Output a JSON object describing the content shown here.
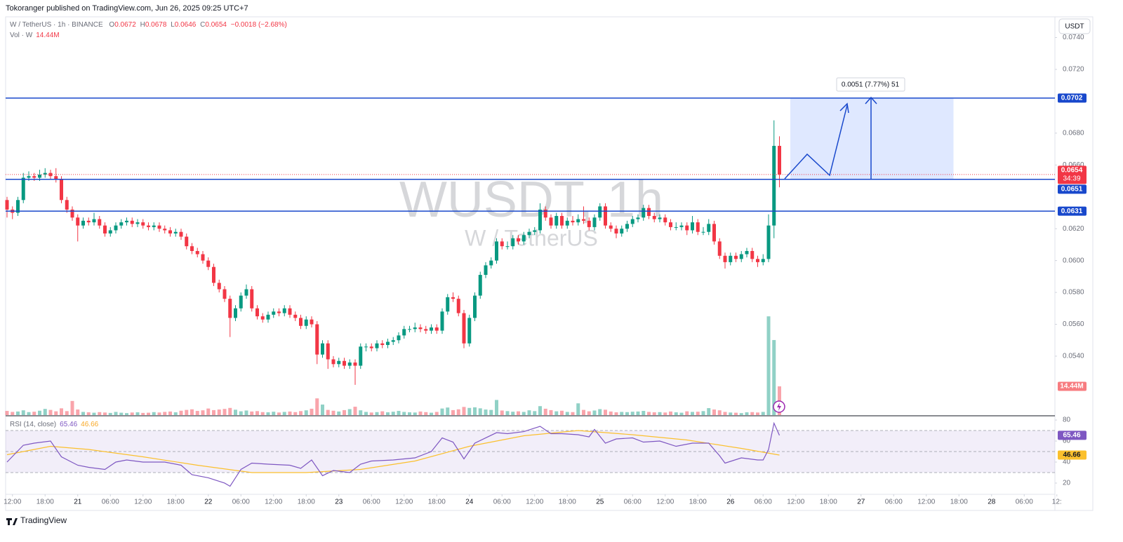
{
  "chart_data": {
    "type": "candlestick",
    "publisher": "Tokoranger published on TradingView.com, Jun 26, 2025 09:25 UTC+7",
    "legend": {
      "symbol": "W / TetherUS · 1h · BINANCE",
      "ohlc_letters": [
        "O",
        "H",
        "L",
        "C"
      ],
      "change": "−0.0018 (−2.68%)",
      "volume": "Vol · W"
    },
    "watermark": "WUSDT, 1h",
    "watermark_sub": "W / TetherUS",
    "currency": "USDT",
    "countdown": "34:39",
    "footer": "TradingView",
    "colors": {
      "up": "#089981",
      "down": "#f23645",
      "line": "#1848cc",
      "rsi": "#7e57c2",
      "rsi_ma": "#fbc02d"
    },
    "grid": false,
    "ylim": [
      0.0503,
      0.0753
    ],
    "yticks": [
      {
        "value": 0.074,
        "label": "0.0740"
      },
      {
        "value": 0.072,
        "label": "0.0720"
      },
      {
        "value": 0.068,
        "label": "0.0680"
      },
      {
        "value": 0.066,
        "label": "0.0660"
      },
      {
        "value": 0.062,
        "label": "0.0620"
      },
      {
        "value": 0.06,
        "label": "0.0600"
      },
      {
        "value": 0.058,
        "label": "0.0580"
      },
      {
        "value": 0.056,
        "label": "0.0560"
      },
      {
        "value": 0.054,
        "label": "0.0540"
      }
    ],
    "xticks": [
      {
        "value": 1,
        "label": "12:00"
      },
      {
        "value": 7,
        "label": "18:00"
      },
      {
        "value": 13,
        "label": "21"
      },
      {
        "value": 19,
        "label": "06:00"
      },
      {
        "value": 25,
        "label": "12:00"
      },
      {
        "value": 31,
        "label": "18:00"
      },
      {
        "value": 37,
        "label": "22"
      },
      {
        "value": 43,
        "label": "06:00"
      },
      {
        "value": 49,
        "label": "12:00"
      },
      {
        "value": 55,
        "label": "18:00"
      },
      {
        "value": 61,
        "label": "23"
      },
      {
        "value": 67,
        "label": "06:00"
      },
      {
        "value": 73,
        "label": "12:00"
      },
      {
        "value": 79,
        "label": "18:00"
      },
      {
        "value": 85,
        "label": "24"
      },
      {
        "value": 91,
        "label": "06:00"
      },
      {
        "value": 97,
        "label": "12:00"
      },
      {
        "value": 103,
        "label": "18:00"
      },
      {
        "value": 109,
        "label": "25"
      },
      {
        "value": 115,
        "label": "06:00"
      },
      {
        "value": 121,
        "label": "12:00"
      },
      {
        "value": 127,
        "label": "18:00"
      },
      {
        "value": 133,
        "label": "26"
      },
      {
        "value": 139,
        "label": "06:00"
      },
      {
        "value": 145,
        "label": "12:00"
      },
      {
        "value": 151,
        "label": "18:00"
      },
      {
        "value": 157,
        "label": "27"
      },
      {
        "value": 163,
        "label": "06:00"
      },
      {
        "value": 169,
        "label": "12:00"
      },
      {
        "value": 175,
        "label": "18:00"
      },
      {
        "value": 181,
        "label": "28"
      },
      {
        "value": 187,
        "label": "06:00"
      },
      {
        "value": 193,
        "label": "12:"
      }
    ],
    "candles": [
      [
        0.0638,
        0.064,
        0.0627,
        0.0632
      ],
      [
        0.0632,
        0.0634,
        0.0626,
        0.063
      ],
      [
        0.063,
        0.064,
        0.0628,
        0.0638
      ],
      [
        0.0638,
        0.0655,
        0.0636,
        0.0652
      ],
      [
        0.0652,
        0.0656,
        0.065,
        0.0653
      ],
      [
        0.0653,
        0.0655,
        0.065,
        0.0652
      ],
      [
        0.0652,
        0.0657,
        0.065,
        0.0654
      ],
      [
        0.0654,
        0.0658,
        0.0652,
        0.0655
      ],
      [
        0.0655,
        0.0657,
        0.0651,
        0.0653
      ],
      [
        0.0653,
        0.0658,
        0.0649,
        0.0651
      ],
      [
        0.0651,
        0.0653,
        0.0636,
        0.0638
      ],
      [
        0.0638,
        0.064,
        0.063,
        0.0632
      ],
      [
        0.0632,
        0.0634,
        0.0625,
        0.0627
      ],
      [
        0.0627,
        0.0629,
        0.0612,
        0.0622
      ],
      [
        0.0622,
        0.0627,
        0.062,
        0.0625
      ],
      [
        0.0625,
        0.0627,
        0.0622,
        0.0624
      ],
      [
        0.0624,
        0.063,
        0.0622,
        0.0626
      ],
      [
        0.0626,
        0.0628,
        0.062,
        0.0622
      ],
      [
        0.0622,
        0.0624,
        0.0615,
        0.0617
      ],
      [
        0.0617,
        0.0621,
        0.0615,
        0.0619
      ],
      [
        0.0619,
        0.0624,
        0.0617,
        0.0622
      ],
      [
        0.0622,
        0.0626,
        0.062,
        0.0624
      ],
      [
        0.0624,
        0.0627,
        0.0622,
        0.0625
      ],
      [
        0.0625,
        0.0627,
        0.0621,
        0.0623
      ],
      [
        0.0623,
        0.0626,
        0.0621,
        0.0624
      ],
      [
        0.0624,
        0.0626,
        0.062,
        0.0622
      ],
      [
        0.0622,
        0.0624,
        0.0619,
        0.0621
      ],
      [
        0.0621,
        0.0624,
        0.0619,
        0.0622
      ],
      [
        0.0622,
        0.0624,
        0.0618,
        0.062
      ],
      [
        0.062,
        0.0622,
        0.0617,
        0.0619
      ],
      [
        0.0619,
        0.0621,
        0.0615,
        0.0617
      ],
      [
        0.0617,
        0.062,
        0.0615,
        0.0618
      ],
      [
        0.0618,
        0.062,
        0.0613,
        0.0615
      ],
      [
        0.0615,
        0.0617,
        0.0607,
        0.0609
      ],
      [
        0.0609,
        0.0611,
        0.0604,
        0.0606
      ],
      [
        0.0606,
        0.0608,
        0.0602,
        0.0604
      ],
      [
        0.0604,
        0.0606,
        0.0598,
        0.06
      ],
      [
        0.06,
        0.0602,
        0.0594,
        0.0596
      ],
      [
        0.0596,
        0.0598,
        0.0584,
        0.0586
      ],
      [
        0.0586,
        0.0588,
        0.058,
        0.0582
      ],
      [
        0.0582,
        0.0584,
        0.0574,
        0.0576
      ],
      [
        0.0576,
        0.0578,
        0.0552,
        0.0564
      ],
      [
        0.0564,
        0.0572,
        0.0562,
        0.057
      ],
      [
        0.057,
        0.058,
        0.0568,
        0.0578
      ],
      [
        0.0578,
        0.0585,
        0.0576,
        0.0582
      ],
      [
        0.0582,
        0.0584,
        0.0568,
        0.057
      ],
      [
        0.057,
        0.0572,
        0.0563,
        0.0565
      ],
      [
        0.0565,
        0.0567,
        0.0561,
        0.0563
      ],
      [
        0.0563,
        0.0568,
        0.0561,
        0.0566
      ],
      [
        0.0566,
        0.057,
        0.0564,
        0.0568
      ],
      [
        0.0568,
        0.057,
        0.0565,
        0.0567
      ],
      [
        0.0567,
        0.0572,
        0.0565,
        0.057
      ],
      [
        0.057,
        0.0572,
        0.0564,
        0.0566
      ],
      [
        0.0566,
        0.0568,
        0.0562,
        0.0564
      ],
      [
        0.0564,
        0.0566,
        0.0557,
        0.0559
      ],
      [
        0.0559,
        0.0565,
        0.0557,
        0.0563
      ],
      [
        0.0563,
        0.0565,
        0.0558,
        0.056
      ],
      [
        0.056,
        0.0562,
        0.0535,
        0.0541
      ],
      [
        0.0541,
        0.055,
        0.0539,
        0.0548
      ],
      [
        0.0548,
        0.055,
        0.0532,
        0.0538
      ],
      [
        0.0538,
        0.054,
        0.0533,
        0.0535
      ],
      [
        0.0535,
        0.0539,
        0.0533,
        0.0537
      ],
      [
        0.0537,
        0.0539,
        0.0532,
        0.0534
      ],
      [
        0.0534,
        0.0538,
        0.0532,
        0.0536
      ],
      [
        0.0536,
        0.0538,
        0.0522,
        0.0534
      ],
      [
        0.0534,
        0.0548,
        0.0532,
        0.0546
      ],
      [
        0.0546,
        0.0548,
        0.0543,
        0.0546
      ],
      [
        0.0546,
        0.0548,
        0.0543,
        0.0545
      ],
      [
        0.0545,
        0.055,
        0.0543,
        0.0548
      ],
      [
        0.0548,
        0.055,
        0.0545,
        0.0547
      ],
      [
        0.0547,
        0.0551,
        0.0545,
        0.0549
      ],
      [
        0.0549,
        0.0552,
        0.0547,
        0.055
      ],
      [
        0.055,
        0.0555,
        0.0548,
        0.0553
      ],
      [
        0.0553,
        0.0559,
        0.0551,
        0.0557
      ],
      [
        0.0557,
        0.0559,
        0.0555,
        0.0557
      ],
      [
        0.0557,
        0.0561,
        0.0555,
        0.0558
      ],
      [
        0.0558,
        0.056,
        0.0555,
        0.0557
      ],
      [
        0.0557,
        0.0559,
        0.0554,
        0.0556
      ],
      [
        0.0556,
        0.056,
        0.0554,
        0.0558
      ],
      [
        0.0558,
        0.056,
        0.0554,
        0.0556
      ],
      [
        0.0556,
        0.057,
        0.0554,
        0.0568
      ],
      [
        0.0568,
        0.0579,
        0.0566,
        0.0577
      ],
      [
        0.0577,
        0.058,
        0.0574,
        0.0576
      ],
      [
        0.0576,
        0.0578,
        0.0565,
        0.0567
      ],
      [
        0.0567,
        0.0569,
        0.0545,
        0.0548
      ],
      [
        0.0548,
        0.0566,
        0.0546,
        0.0564
      ],
      [
        0.0564,
        0.058,
        0.0562,
        0.0578
      ],
      [
        0.0578,
        0.0593,
        0.0576,
        0.0591
      ],
      [
        0.0591,
        0.0599,
        0.0589,
        0.0597
      ],
      [
        0.0597,
        0.0602,
        0.0595,
        0.06
      ],
      [
        0.06,
        0.0614,
        0.0598,
        0.0612
      ],
      [
        0.0612,
        0.0614,
        0.0607,
        0.0609
      ],
      [
        0.0609,
        0.0612,
        0.0607,
        0.0609
      ],
      [
        0.0609,
        0.0616,
        0.0607,
        0.0614
      ],
      [
        0.0614,
        0.0616,
        0.061,
        0.0612
      ],
      [
        0.0612,
        0.0618,
        0.061,
        0.0616
      ],
      [
        0.0616,
        0.062,
        0.0614,
        0.0618
      ],
      [
        0.0618,
        0.0621,
        0.0616,
        0.0619
      ],
      [
        0.0619,
        0.0636,
        0.0617,
        0.0632
      ],
      [
        0.0632,
        0.0634,
        0.0625,
        0.0627
      ],
      [
        0.0627,
        0.0629,
        0.062,
        0.0622
      ],
      [
        0.0622,
        0.063,
        0.062,
        0.0628
      ],
      [
        0.0628,
        0.063,
        0.062,
        0.0622
      ],
      [
        0.0622,
        0.0627,
        0.062,
        0.0625
      ],
      [
        0.0625,
        0.0628,
        0.0622,
        0.0624
      ],
      [
        0.0624,
        0.0629,
        0.0622,
        0.0626
      ],
      [
        0.0626,
        0.0634,
        0.0623,
        0.0625
      ],
      [
        0.0625,
        0.0627,
        0.0619,
        0.0621
      ],
      [
        0.0621,
        0.0629,
        0.0619,
        0.0627
      ],
      [
        0.0627,
        0.0636,
        0.0625,
        0.0634
      ],
      [
        0.0634,
        0.0636,
        0.062,
        0.0622
      ],
      [
        0.0622,
        0.0624,
        0.0618,
        0.062
      ],
      [
        0.062,
        0.0622,
        0.0614,
        0.0617
      ],
      [
        0.0617,
        0.0622,
        0.0615,
        0.062
      ],
      [
        0.062,
        0.0625,
        0.0618,
        0.0623
      ],
      [
        0.0623,
        0.0628,
        0.0621,
        0.0626
      ],
      [
        0.0626,
        0.0629,
        0.0624,
        0.0627
      ],
      [
        0.0627,
        0.0635,
        0.0625,
        0.0633
      ],
      [
        0.0633,
        0.0635,
        0.0626,
        0.0628
      ],
      [
        0.0628,
        0.063,
        0.0624,
        0.0626
      ],
      [
        0.0626,
        0.0629,
        0.0624,
        0.0627
      ],
      [
        0.0627,
        0.0629,
        0.0622,
        0.0624
      ],
      [
        0.0624,
        0.0626,
        0.0619,
        0.0621
      ],
      [
        0.0621,
        0.0624,
        0.0619,
        0.0621
      ],
      [
        0.0621,
        0.0624,
        0.0619,
        0.0622
      ],
      [
        0.0622,
        0.0624,
        0.0616,
        0.0619
      ],
      [
        0.0619,
        0.0628,
        0.0617,
        0.0624
      ],
      [
        0.0624,
        0.0626,
        0.0616,
        0.0618
      ],
      [
        0.0618,
        0.0621,
        0.0616,
        0.0618
      ],
      [
        0.0618,
        0.0626,
        0.0616,
        0.0623
      ],
      [
        0.0623,
        0.0625,
        0.061,
        0.0612
      ],
      [
        0.0612,
        0.0614,
        0.0601,
        0.0603
      ],
      [
        0.0603,
        0.0605,
        0.0595,
        0.0599
      ],
      [
        0.0599,
        0.0605,
        0.0597,
        0.0603
      ],
      [
        0.0603,
        0.0605,
        0.0599,
        0.0601
      ],
      [
        0.0601,
        0.0606,
        0.0599,
        0.0604
      ],
      [
        0.0604,
        0.0608,
        0.0602,
        0.0606
      ],
      [
        0.0606,
        0.0608,
        0.0599,
        0.0601
      ],
      [
        0.0601,
        0.0603,
        0.0596,
        0.0599
      ],
      [
        0.0599,
        0.0604,
        0.0597,
        0.0601
      ],
      [
        0.0601,
        0.0629,
        0.0599,
        0.0622
      ],
      [
        0.0622,
        0.0688,
        0.0614,
        0.0672
      ],
      [
        0.0672,
        0.0678,
        0.0646,
        0.0654
      ]
    ],
    "volume": [
      2.1,
      1.6,
      1.8,
      2.4,
      1.5,
      1.7,
      2.2,
      3.1,
      2.6,
      1.9,
      3.4,
      2.0,
      7.1,
      2.8,
      1.6,
      1.4,
      1.2,
      1.5,
      1.3,
      1.1,
      1.6,
      1.2,
      1.0,
      1.3,
      1.4,
      1.1,
      1.2,
      1.5,
      1.3,
      1.6,
      1.8,
      1.4,
      2.2,
      2.6,
      2.9,
      2.1,
      2.4,
      3.3,
      2.5,
      2.8,
      3.1,
      3.6,
      2.7,
      1.9,
      2.3,
      1.8,
      2.0,
      1.5,
      1.4,
      1.7,
      1.3,
      1.6,
      1.8,
      1.5,
      2.0,
      2.4,
      3.2,
      8.4,
      5.3,
      2.6,
      2.2,
      1.8,
      2.5,
      3.0,
      4.2,
      2.4,
      1.6,
      1.3,
      1.5,
      1.9,
      1.4,
      1.7,
      2.1,
      1.6,
      1.4,
      1.3,
      1.8,
      1.5,
      1.2,
      1.6,
      3.3,
      3.8,
      2.5,
      2.9,
      4.1,
      3.6,
      3.9,
      3.4,
      2.8,
      2.6,
      7.6,
      2.3,
      2.0,
      1.7,
      1.9,
      1.6,
      2.4,
      2.0,
      4.5,
      3.2,
      2.5,
      1.9,
      2.2,
      1.6,
      1.5,
      5.9,
      2.6,
      1.9,
      2.3,
      3.0,
      2.7,
      1.8,
      1.4,
      1.6,
      1.5,
      1.7,
      1.8,
      2.1,
      1.6,
      1.4,
      1.5,
      1.3,
      1.8,
      1.4,
      1.2,
      1.9,
      1.6,
      1.7,
      2.0,
      3.5,
      2.8,
      2.4,
      1.6,
      1.3,
      1.2,
      1.0,
      1.4,
      1.5,
      1.3,
      1.6,
      49.6,
      37.7,
      14.44
    ],
    "volume_label": "14.44M",
    "hlines": [
      0.0702,
      0.0651,
      0.0631
    ],
    "projection_label": "0.0051 (7.77%) 51",
    "rsi_title": "RSI (14, close)",
    "rsi_ylim": [
      9.3,
      80.7
    ],
    "rsi_yticks": [
      80,
      60,
      40,
      20
    ],
    "rsi_levels": [
      70,
      50,
      30
    ],
    "rsi": {
      "x": [
        0,
        3,
        5,
        8,
        10,
        13,
        15,
        18,
        20,
        22,
        25,
        29,
        32,
        34,
        37,
        40,
        41,
        43,
        45,
        48,
        52,
        54,
        56,
        58,
        60,
        63,
        65,
        67,
        71,
        75,
        78,
        80,
        82,
        84,
        86,
        90,
        92,
        95,
        98,
        100,
        102,
        105,
        107,
        108,
        110,
        112,
        115,
        117,
        120,
        123,
        126,
        129,
        131,
        132,
        135,
        138,
        139,
        140,
        141,
        142
      ],
      "values": [
        40,
        56,
        58,
        60,
        45,
        37,
        35,
        33,
        40,
        42,
        40,
        40,
        37,
        28,
        25,
        20,
        17,
        33,
        39,
        38,
        37,
        34,
        42,
        27,
        32,
        30,
        38,
        41,
        42,
        44,
        50,
        63,
        59,
        43,
        58,
        68,
        67,
        69,
        74,
        67,
        67,
        66,
        64,
        71,
        58,
        62,
        63,
        59,
        60,
        55,
        58,
        58,
        46,
        39,
        44,
        42,
        42,
        52,
        77,
        65.46
      ]
    },
    "rsi_ma": {
      "x": [
        0,
        8,
        15,
        25,
        35,
        45,
        55,
        65,
        75,
        85,
        95,
        105,
        115,
        125,
        135,
        142
      ],
      "values": [
        47,
        55,
        52,
        45,
        37,
        30,
        30,
        33,
        41,
        55,
        65,
        70,
        66,
        61,
        53,
        46.66
      ]
    }
  }
}
